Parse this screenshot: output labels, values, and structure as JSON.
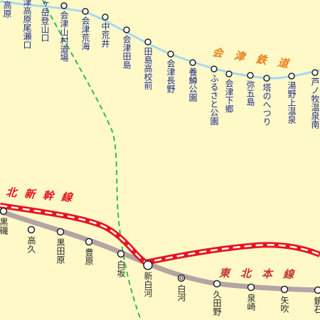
{
  "aizu_line": {
    "label": "会津鉄道",
    "stations": [
      "高原",
      "津高原尾瀬口",
      "ヶ岳登山口",
      "会津山村道場",
      "会津荒海",
      "中荒井",
      "会津田島",
      "田島高校前",
      "会津長野",
      "養鱒公園",
      "ふるさと公園",
      "会津下郷",
      "弥五島",
      "塔のへつり",
      "湯野上温泉",
      "芦ノ牧温泉南"
    ]
  },
  "shinkansen": {
    "label": "北新幹線"
  },
  "tohoku_line": {
    "label": "東北本線",
    "stations": [
      "黒磯",
      "高久",
      "黒田原",
      "豊原",
      "白坂",
      "新白河",
      "白河",
      "久田野",
      "泉崎",
      "矢吹",
      "鏡石"
    ]
  }
}
